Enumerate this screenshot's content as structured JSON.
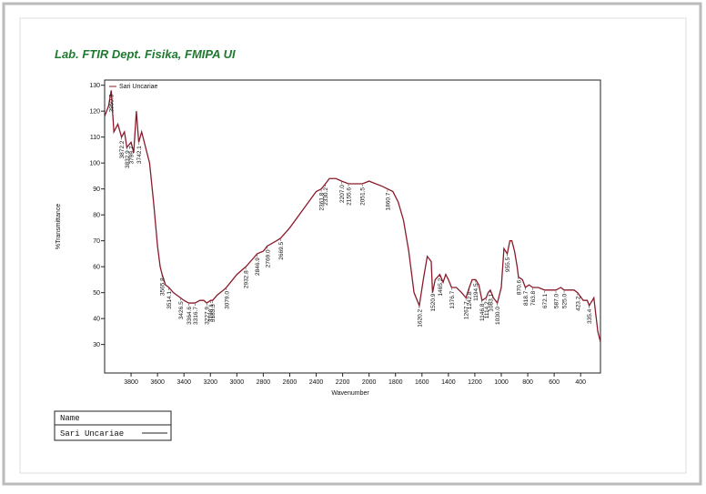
{
  "chart_data": {
    "type": "line",
    "title": "Lab. FTIR Dept. Fisika, FMIPA UI",
    "xlabel": "Wavenumber",
    "ylabel": "%Transmittance",
    "xlim": [
      4000,
      250
    ],
    "ylim": [
      19,
      132
    ],
    "xticks": [
      3800,
      3600,
      3400,
      3200,
      3000,
      2800,
      2600,
      2400,
      2200,
      2000,
      1800,
      1600,
      1400,
      1200,
      1000,
      800,
      600,
      400
    ],
    "yticks": [
      30,
      40,
      50,
      60,
      70,
      80,
      90,
      100,
      110,
      120,
      130
    ],
    "x": [
      4000,
      3970,
      3950,
      3930,
      3900,
      3872,
      3850,
      3832,
      3800,
      3780,
      3760,
      3742,
      3720,
      3700,
      3660,
      3630,
      3600,
      3580,
      3565,
      3540,
      3514,
      3480,
      3426,
      3400,
      3364,
      3316,
      3280,
      3250,
      3227,
      3198,
      3183,
      3150,
      3100,
      3079,
      3000,
      2932,
      2880,
      2846,
      2800,
      2769,
      2700,
      2669,
      2600,
      2500,
      2400,
      2361,
      2330,
      2300,
      2250,
      2207,
      2155,
      2100,
      2051,
      2000,
      1950,
      1900,
      1860,
      1820,
      1780,
      1740,
      1700,
      1660,
      1620,
      1590,
      1560,
      1530,
      1520,
      1500,
      1465,
      1440,
      1420,
      1400,
      1376,
      1340,
      1300,
      1267,
      1242,
      1220,
      1194,
      1170,
      1146,
      1114,
      1100,
      1083,
      1060,
      1030,
      1000,
      980,
      955,
      935,
      920,
      900,
      880,
      870,
      840,
      818,
      790,
      763,
      720,
      672,
      630,
      587,
      550,
      525,
      480,
      450,
      423,
      380,
      350,
      335,
      300,
      270,
      250
    ],
    "series": [
      {
        "name": "Sari Uncariae",
        "color": "#8b1a2b",
        "values": [
          118,
          122,
          128,
          112,
          115,
          110,
          112,
          106,
          108,
          104,
          120,
          108,
          112,
          108,
          100,
          85,
          68,
          60,
          57,
          53,
          52,
          50,
          48,
          47,
          46,
          46,
          47,
          47,
          46,
          47,
          47,
          49,
          51,
          52,
          57,
          60,
          63,
          65,
          66,
          68,
          70,
          71,
          75,
          82,
          89,
          90,
          92,
          94,
          94,
          93,
          92,
          92,
          92,
          93,
          92,
          91,
          90,
          89,
          85,
          78,
          66,
          50,
          45,
          55,
          64,
          62,
          50,
          55,
          57,
          54,
          57,
          55,
          52,
          52,
          50,
          48,
          52,
          55,
          55,
          53,
          47,
          48,
          50,
          51,
          48,
          46,
          52,
          67,
          65,
          70,
          70,
          66,
          60,
          56,
          55,
          52,
          53,
          52,
          52,
          51,
          51,
          51,
          52,
          51,
          51,
          51,
          50,
          47,
          47,
          45,
          48,
          35,
          31
        ]
      }
    ],
    "peaks": [
      3950.3,
      3872.2,
      3832.9,
      3799.7,
      3742.1,
      3565.8,
      3514.1,
      3426.5,
      3364.6,
      3316.7,
      3227.9,
      3198.1,
      3183.3,
      3079.0,
      2932.8,
      2846.9,
      2769.0,
      2669.5,
      2361.8,
      2330.2,
      2207.0,
      2155.6,
      2051.5,
      1860.7,
      1620.2,
      1520.9,
      1465.2,
      1376.7,
      1267.7,
      1242.8,
      1194.5,
      1146.8,
      1114.2,
      1083.1,
      1030.0,
      955.5,
      870.6,
      818.7,
      763.8,
      672.1,
      587.0,
      525.0,
      423.2,
      335.4
    ],
    "peak_labels": [
      "3950.3",
      "3872.2",
      "3832.9",
      "3799.7",
      "3742.1",
      "3565.8",
      "3514.1",
      "3426.5",
      "3364.6",
      "3316.7",
      "3227.9",
      "3198.1",
      "3183.3",
      "3079.0",
      "2932.8",
      "2846.9",
      "2769.0",
      "2669.5",
      "2361.8",
      "2330.2",
      "2207.0",
      "2155.6",
      "2051.5",
      "1860.7",
      "1620.2",
      "1520.9",
      "1465.2",
      "1376.7",
      "1267.7",
      "1242.8",
      "1194.5",
      "1146.8",
      "1114.2",
      "1083.1",
      "1030.0",
      "955.5",
      "870.6",
      "818.7",
      "763.8",
      "672.1",
      "587.0",
      "525.0",
      "423.2",
      "335.4"
    ]
  },
  "name_box": {
    "header": "Name",
    "entry": "Sari Uncariae"
  }
}
